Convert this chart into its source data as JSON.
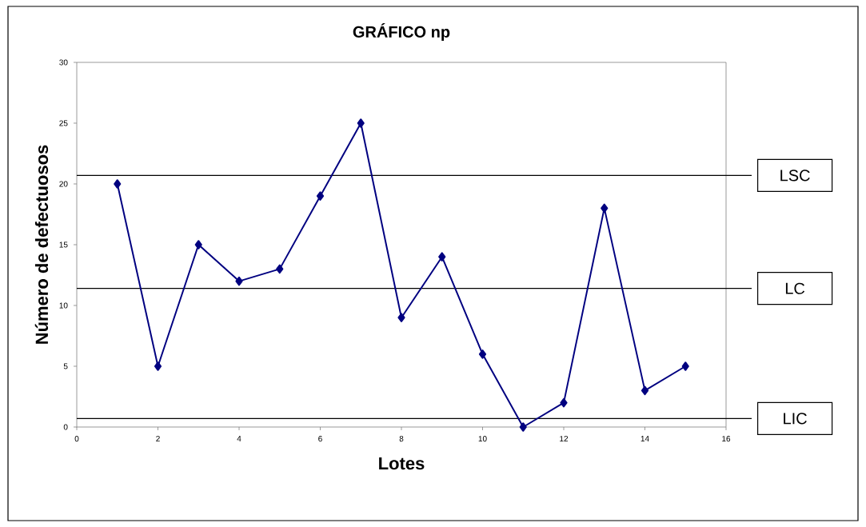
{
  "chart_data": {
    "type": "line",
    "title": "GRÁFICO np",
    "xlabel": "Lotes",
    "ylabel": "Número de defectuosos",
    "x": [
      1,
      2,
      3,
      4,
      5,
      6,
      7,
      8,
      9,
      10,
      11,
      12,
      13,
      14,
      15
    ],
    "series": [
      {
        "color": "#000080",
        "values": [
          20,
          5,
          15,
          12,
          13,
          19,
          25,
          9,
          14,
          6,
          0,
          2,
          18,
          3,
          5
        ]
      }
    ],
    "marker": "diamond",
    "line_style": "solid",
    "xlim": [
      0,
      16
    ],
    "xticks": [
      0,
      2,
      4,
      6,
      8,
      10,
      12,
      14,
      16
    ],
    "ylim": [
      0,
      30
    ],
    "yticks": [
      0,
      5,
      10,
      15,
      20,
      25,
      30
    ],
    "grid": false,
    "ref_lines": [
      {
        "axis": "y",
        "value": 20.7,
        "label": "LSC",
        "color": "#000000"
      },
      {
        "axis": "y",
        "value": 11.4,
        "label": "LC",
        "color": "#000000"
      },
      {
        "axis": "y",
        "value": 0.7,
        "label": "LIC",
        "color": "#000000"
      }
    ]
  }
}
